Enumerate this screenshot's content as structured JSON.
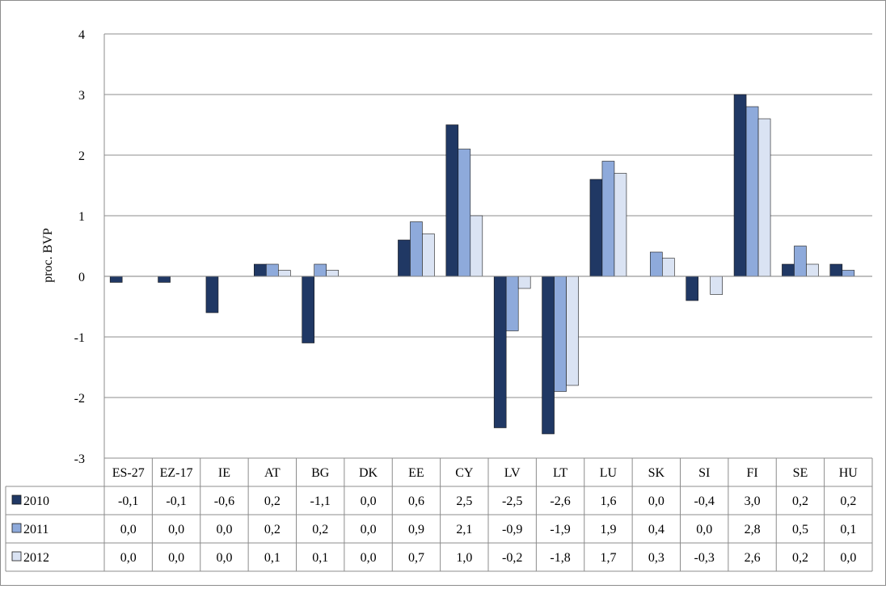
{
  "chart_data": {
    "type": "bar",
    "ylabel": "proc. BVP",
    "ylim": [
      -3,
      4
    ],
    "y_ticks": [
      4,
      3,
      2,
      1,
      0,
      -1,
      -2,
      -3
    ],
    "grid": true,
    "legend_placement": "data-table",
    "categories": [
      "ES-27",
      "EZ-17",
      "IE",
      "AT",
      "BG",
      "DK",
      "EE",
      "CY",
      "LV",
      "LT",
      "LU",
      "SK",
      "SI",
      "FI",
      "SE",
      "HU"
    ],
    "series": [
      {
        "name": "2010",
        "color": "#203864",
        "values": [
          -0.1,
          -0.1,
          -0.6,
          0.2,
          -1.1,
          0.0,
          0.6,
          2.5,
          -2.5,
          -2.6,
          1.6,
          0.0,
          -0.4,
          3.0,
          0.2,
          0.2
        ],
        "labels": [
          "-0,1",
          "-0,1",
          "-0,6",
          "0,2",
          "-1,1",
          "0,0",
          "0,6",
          "2,5",
          "-2,5",
          "-2,6",
          "1,6",
          "0,0",
          "-0,4",
          "3,0",
          "0,2",
          "0,2"
        ]
      },
      {
        "name": "2011",
        "color": "#8eaadb",
        "values": [
          0.0,
          0.0,
          0.0,
          0.2,
          0.2,
          0.0,
          0.9,
          2.1,
          -0.9,
          -1.9,
          1.9,
          0.4,
          0.0,
          2.8,
          0.5,
          0.1
        ],
        "labels": [
          "0,0",
          "0,0",
          "0,0",
          "0,2",
          "0,2",
          "0,0",
          "0,9",
          "2,1",
          "-0,9",
          "-1,9",
          "1,9",
          "0,4",
          "0,0",
          "2,8",
          "0,5",
          "0,1"
        ]
      },
      {
        "name": "2012",
        "color": "#dae3f3",
        "values": [
          0.0,
          0.0,
          0.0,
          0.1,
          0.1,
          0.0,
          0.7,
          1.0,
          -0.2,
          -1.8,
          1.7,
          0.3,
          -0.3,
          2.6,
          0.2,
          0.0
        ],
        "labels": [
          "0,0",
          "0,0",
          "0,0",
          "0,1",
          "0,1",
          "0,0",
          "0,7",
          "1,0",
          "-0,2",
          "-1,8",
          "1,7",
          "0,3",
          "-0,3",
          "2,6",
          "0,2",
          "0,0"
        ]
      }
    ]
  }
}
